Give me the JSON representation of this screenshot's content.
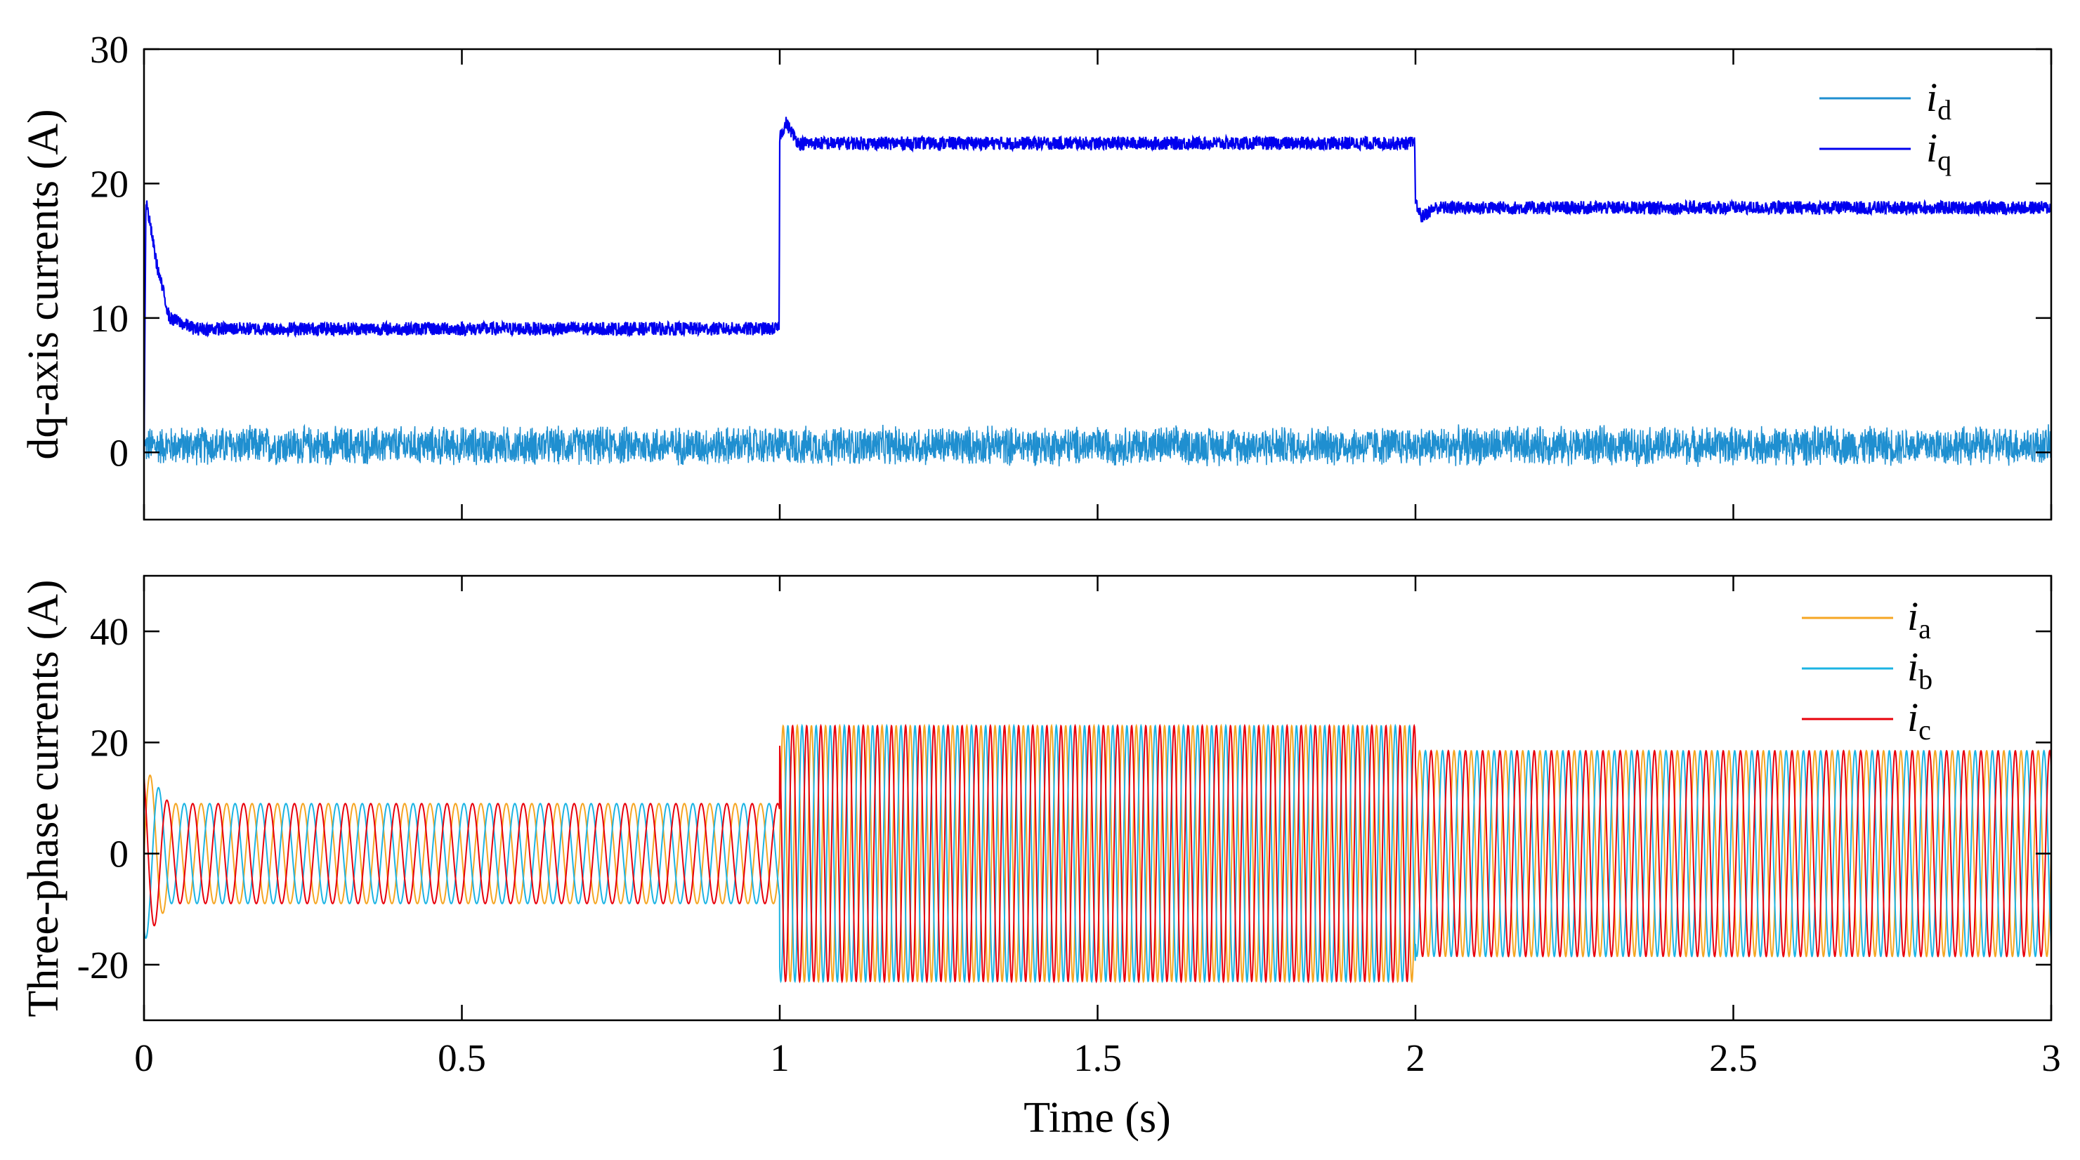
{
  "chart_data": [
    {
      "type": "line",
      "ylabel": "dq-axis currents (A)",
      "xlabel": "",
      "xlim": [
        0,
        3
      ],
      "ylim": [
        -5,
        30
      ],
      "xticks": [
        0,
        0.5,
        1,
        1.5,
        2,
        2.5,
        3
      ],
      "yticks": [
        0,
        10,
        20,
        30
      ],
      "ytick_labels": [
        "0",
        "10",
        "20",
        "30"
      ],
      "legend": {
        "position": "top-right"
      },
      "series": [
        {
          "name": "i",
          "subscript": "d",
          "color": "#1f8fd0",
          "x": [
            0,
            0.5,
            1,
            1.5,
            2,
            2.5,
            3
          ],
          "values": [
            0.5,
            0.5,
            0.5,
            0.5,
            0.5,
            0.5,
            0.5
          ],
          "ripple": 1.6
        },
        {
          "name": "i",
          "subscript": "q",
          "color": "#0000ee",
          "x": [
            0,
            0.003,
            0.02,
            0.04,
            0.08,
            0.999,
            1.0,
            1.01,
            1.03,
            1.999,
            2.0,
            2.01,
            2.03,
            3
          ],
          "values": [
            0,
            18.8,
            14,
            10,
            9.2,
            9.2,
            23.5,
            24.5,
            23,
            23,
            18.5,
            17.5,
            18.2,
            18.2
          ],
          "ripple": 0.5
        }
      ]
    },
    {
      "type": "line",
      "ylabel": "Three-phase currents (A)",
      "xlabel": "Time (s)",
      "xlim": [
        0,
        3
      ],
      "ylim": [
        -30,
        50
      ],
      "xticks": [
        0,
        0.5,
        1,
        1.5,
        2,
        2.5,
        3
      ],
      "xtick_labels": [
        "0",
        "0.5",
        "1",
        "1.5",
        "2",
        "2.5",
        "3"
      ],
      "yticks": [
        -20,
        0,
        20,
        40
      ],
      "ytick_labels": [
        "-20",
        "0",
        "20",
        "40"
      ],
      "legend": {
        "position": "top-right"
      },
      "amplitude_segments": [
        {
          "from": 0,
          "to": 1,
          "amplitude": 9
        },
        {
          "from": 1,
          "to": 2,
          "amplitude": 23
        },
        {
          "from": 2,
          "to": 3,
          "amplitude": 18.5
        }
      ],
      "frequency_hz": [
        25,
        45,
        37
      ],
      "series": [
        {
          "name": "i",
          "subscript": "a",
          "color": "#f5a623",
          "phase_deg": 0
        },
        {
          "name": "i",
          "subscript": "b",
          "color": "#1cb4e3",
          "phase_deg": -120
        },
        {
          "name": "i",
          "subscript": "c",
          "color": "#e8000b",
          "phase_deg": 120
        }
      ]
    }
  ]
}
